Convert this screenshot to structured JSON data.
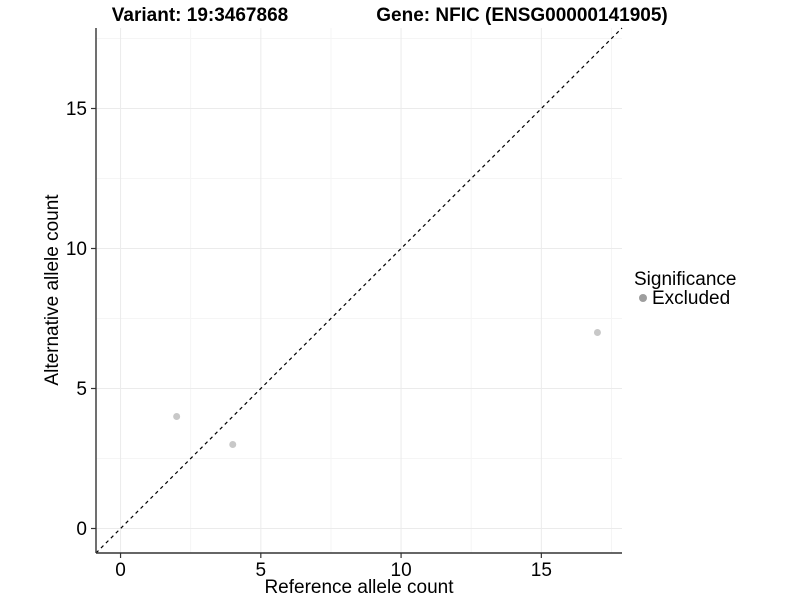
{
  "chart_data": {
    "type": "scatter",
    "title_left": "Variant: 19:3467868",
    "title_right": "Gene: NFIC (ENSG00000141905)",
    "xlabel": "Reference allele count",
    "ylabel": "Alternative allele count",
    "xlim": [
      -0.875,
      17.875
    ],
    "ylim": [
      -0.875,
      17.875
    ],
    "x_major_ticks": [
      0,
      5,
      10,
      15
    ],
    "y_major_ticks": [
      0,
      5,
      10,
      15
    ],
    "x_minor_gridlines": [
      2.5,
      7.5,
      12.5,
      17.5
    ],
    "y_minor_gridlines": [
      2.5,
      7.5,
      12.5,
      17.5
    ],
    "grid": "major+minor",
    "identity_line": {
      "type": "abline",
      "slope": 1,
      "intercept": 0,
      "style": "dashed",
      "color": "#000000"
    },
    "series": [
      {
        "name": "Excluded",
        "marker": "circle",
        "color": "#c8c8c8",
        "points": [
          {
            "x": 2,
            "y": 4
          },
          {
            "x": 4,
            "y": 3
          },
          {
            "x": 17,
            "y": 7
          }
        ]
      }
    ],
    "legend": {
      "title": "Significance",
      "position": "right",
      "items": [
        {
          "label": "Excluded",
          "key_color": "#9e9e9e",
          "marker": "circle"
        }
      ]
    }
  },
  "colors": {
    "background": "#ffffff",
    "axis_line": "#333333",
    "tick_mark": "#333333",
    "text": "#000000",
    "grid_major": "#ebebeb",
    "grid_minor": "#f5f5f5"
  }
}
